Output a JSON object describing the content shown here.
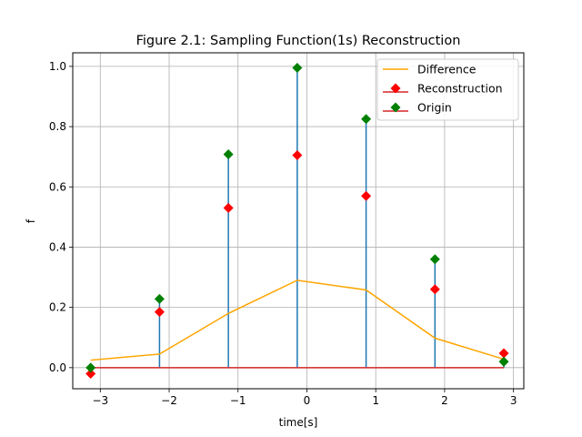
{
  "chart_data": {
    "type": "line",
    "title": "Figure 2.1: Sampling Function(1s) Reconstruction",
    "xlabel": "time[s]",
    "ylabel": "f",
    "xlim": [
      -3.4,
      3.15
    ],
    "ylim": [
      -0.07,
      1.045
    ],
    "grid": true,
    "legend_position": "top-right",
    "x_ticks": [
      "−3",
      "−2",
      "−1",
      "0",
      "1",
      "2",
      "3"
    ],
    "x_tick_values": [
      -3,
      -2,
      -1,
      0,
      1,
      2,
      3
    ],
    "y_ticks": [
      "0.0",
      "0.2",
      "0.4",
      "0.6",
      "0.8",
      "1.0"
    ],
    "y_tick_values": [
      0.0,
      0.2,
      0.4,
      0.6,
      0.8,
      1.0
    ],
    "x": [
      -3.14,
      -2.14,
      -1.14,
      -0.14,
      0.86,
      1.86,
      2.86
    ],
    "series": [
      {
        "name": "Difference",
        "kind": "line",
        "color": "#ffa500",
        "values": [
          0.025,
          0.045,
          0.18,
          0.29,
          0.258,
          0.098,
          0.028
        ]
      },
      {
        "name": "Reconstruction",
        "kind": "stem-marker",
        "color": "#ff0000",
        "values": [
          -0.02,
          0.185,
          0.53,
          0.705,
          0.57,
          0.26,
          0.048
        ]
      },
      {
        "name": "Origin",
        "kind": "stem",
        "color": "#008000",
        "stem_color": "#1f77b4",
        "values": [
          0.0,
          0.228,
          0.708,
          0.995,
          0.825,
          0.36,
          0.02
        ]
      }
    ],
    "baseline": {
      "y": 0.0,
      "color": "#d62728"
    }
  }
}
